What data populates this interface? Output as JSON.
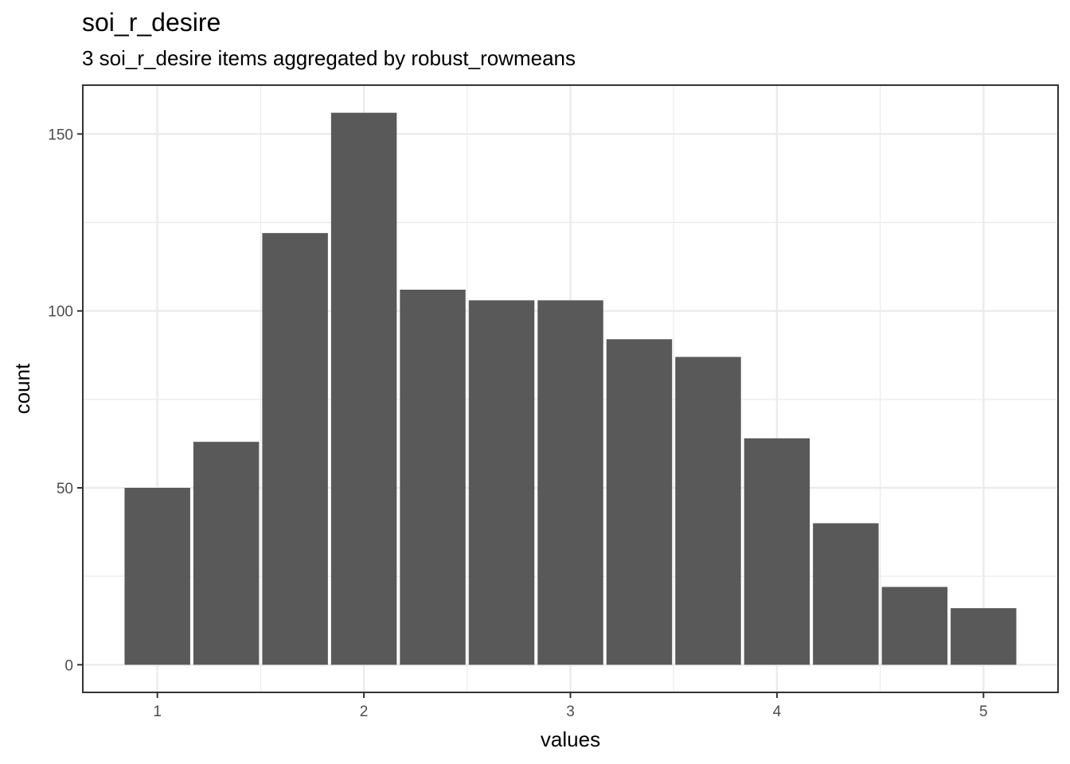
{
  "chart_data": {
    "type": "bar",
    "title": "soi_r_desire",
    "subtitle": "3 soi_r_desire items aggregated by robust_rowmeans",
    "xlabel": "values",
    "ylabel": "count",
    "bin_width": 0.3333,
    "x": [
      1.0,
      1.3333,
      1.6667,
      2.0,
      2.3333,
      2.6667,
      3.0,
      3.3333,
      3.6667,
      4.0,
      4.3333,
      4.6667,
      5.0
    ],
    "values": [
      50,
      63,
      122,
      156,
      106,
      103,
      103,
      92,
      87,
      64,
      40,
      22,
      16
    ],
    "xlim": [
      0.6389,
      5.3611
    ],
    "ylim": [
      -7.8,
      163.8
    ],
    "x_ticks": [
      1,
      2,
      3,
      4,
      5
    ],
    "x_tick_labels": [
      "1",
      "2",
      "3",
      "4",
      "5"
    ],
    "y_ticks": [
      0,
      50,
      100,
      150
    ],
    "y_tick_labels": [
      "0",
      "50",
      "100",
      "150"
    ],
    "grid": true,
    "bar_color": "#595959",
    "grid_color": "#ebebeb",
    "panel_border_color": "#333333"
  }
}
